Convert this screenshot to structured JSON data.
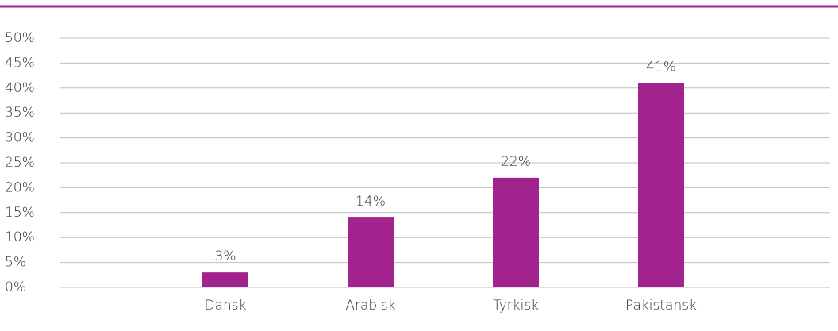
{
  "chart_data": {
    "type": "bar",
    "categories": [
      "Dansk",
      "Arabisk",
      "Tyrkisk",
      "Pakistansk"
    ],
    "values": [
      3,
      14,
      22,
      41
    ],
    "value_labels": [
      "3%",
      "14%",
      "22%",
      "41%"
    ],
    "color": "#a3238e",
    "ylim": [
      0,
      50
    ],
    "yticks": [
      {
        "value": 0,
        "label": "0%"
      },
      {
        "value": 5,
        "label": "5%"
      },
      {
        "value": 10,
        "label": "10%"
      },
      {
        "value": 15,
        "label": "15%"
      },
      {
        "value": 20,
        "label": "20%"
      },
      {
        "value": 25,
        "label": "25%"
      },
      {
        "value": 30,
        "label": "30%"
      },
      {
        "value": 35,
        "label": "35%"
      },
      {
        "value": 40,
        "label": "40%"
      },
      {
        "value": 45,
        "label": "45%"
      },
      {
        "value": 50,
        "label": "50%"
      }
    ],
    "grid": true
  }
}
